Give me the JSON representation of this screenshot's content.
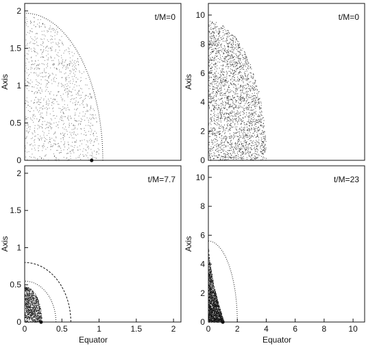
{
  "chart_data": [
    {
      "type": "scatter",
      "panel": "top-left",
      "annotation": "t/M=0",
      "xlabel": "",
      "ylabel": "Axis",
      "xlim": [
        0,
        2.1
      ],
      "ylim": [
        0,
        2.1
      ],
      "x_ticks": [],
      "y_ticks": [
        "0",
        "0.5",
        "1",
        "1.5",
        "2"
      ],
      "y_tick_values": [
        0,
        0.5,
        1,
        1.5,
        2
      ],
      "cloud": {
        "shape": "quarter-ellipse",
        "a": 1.0,
        "b": 1.95,
        "density": "sparse"
      },
      "curves": [
        {
          "style": "dotted",
          "a": 1.05,
          "b": 1.97
        }
      ],
      "markers": [
        {
          "x": 0.9,
          "y": 0
        }
      ],
      "grid": false
    },
    {
      "type": "scatter",
      "panel": "top-right",
      "annotation": "t/M=0",
      "xlabel": "",
      "ylabel": "Axis",
      "xlim": [
        0,
        10.8
      ],
      "ylim": [
        0,
        10.8
      ],
      "x_ticks": [],
      "y_ticks": [
        "0",
        "2",
        "4",
        "6",
        "8",
        "10"
      ],
      "y_tick_values": [
        0,
        2,
        4,
        6,
        8,
        10
      ],
      "cloud": {
        "shape": "quarter-ellipse",
        "a": 4.0,
        "b": 9.6,
        "density": "dense"
      },
      "curves": [],
      "markers": [],
      "grid": false
    },
    {
      "type": "scatter",
      "panel": "bottom-left",
      "annotation": "t/M=7.7",
      "xlabel": "Equator",
      "ylabel": "Axis",
      "xlim": [
        0,
        2.1
      ],
      "ylim": [
        0,
        2.1
      ],
      "x_ticks": [
        "0",
        "0.5",
        "1",
        "1.5",
        "2"
      ],
      "x_tick_values": [
        0,
        0.5,
        1,
        1.5,
        2
      ],
      "y_ticks": [
        "0",
        "0.5",
        "1",
        "1.5",
        "2"
      ],
      "y_tick_values": [
        0,
        0.5,
        1,
        1.5,
        2
      ],
      "cloud": {
        "shape": "quarter-ellipse",
        "a": 0.23,
        "b": 0.48,
        "density": "very-dense"
      },
      "curves": [
        {
          "style": "dotted",
          "a": 0.42,
          "b": 0.55
        },
        {
          "style": "dashed",
          "a": 0.62,
          "b": 0.8
        }
      ],
      "markers": [
        {
          "x": 0.22,
          "y": 0
        }
      ],
      "grid": false
    },
    {
      "type": "scatter",
      "panel": "bottom-right",
      "annotation": "t/M=23",
      "xlabel": "Equator",
      "ylabel": "Axis",
      "xlim": [
        0,
        10.8
      ],
      "ylim": [
        0,
        10.8
      ],
      "x_ticks": [
        "0",
        "2",
        "4",
        "6",
        "8",
        "10"
      ],
      "x_tick_values": [
        0,
        2,
        4,
        6,
        8,
        10
      ],
      "y_ticks": [
        "0",
        "2",
        "4",
        "6",
        "8",
        "10"
      ],
      "y_tick_values": [
        0,
        2,
        4,
        6,
        8,
        10
      ],
      "cloud": {
        "shape": "cone",
        "a": 1.1,
        "b": 5.2,
        "density": "very-dense"
      },
      "curves": [
        {
          "style": "dotted",
          "a": 2.0,
          "b": 5.6
        }
      ],
      "markers": [
        {
          "x": 1.0,
          "y": 0
        }
      ],
      "grid": false
    }
  ],
  "colors": {
    "ink": "#111111",
    "background": "#ffffff"
  }
}
